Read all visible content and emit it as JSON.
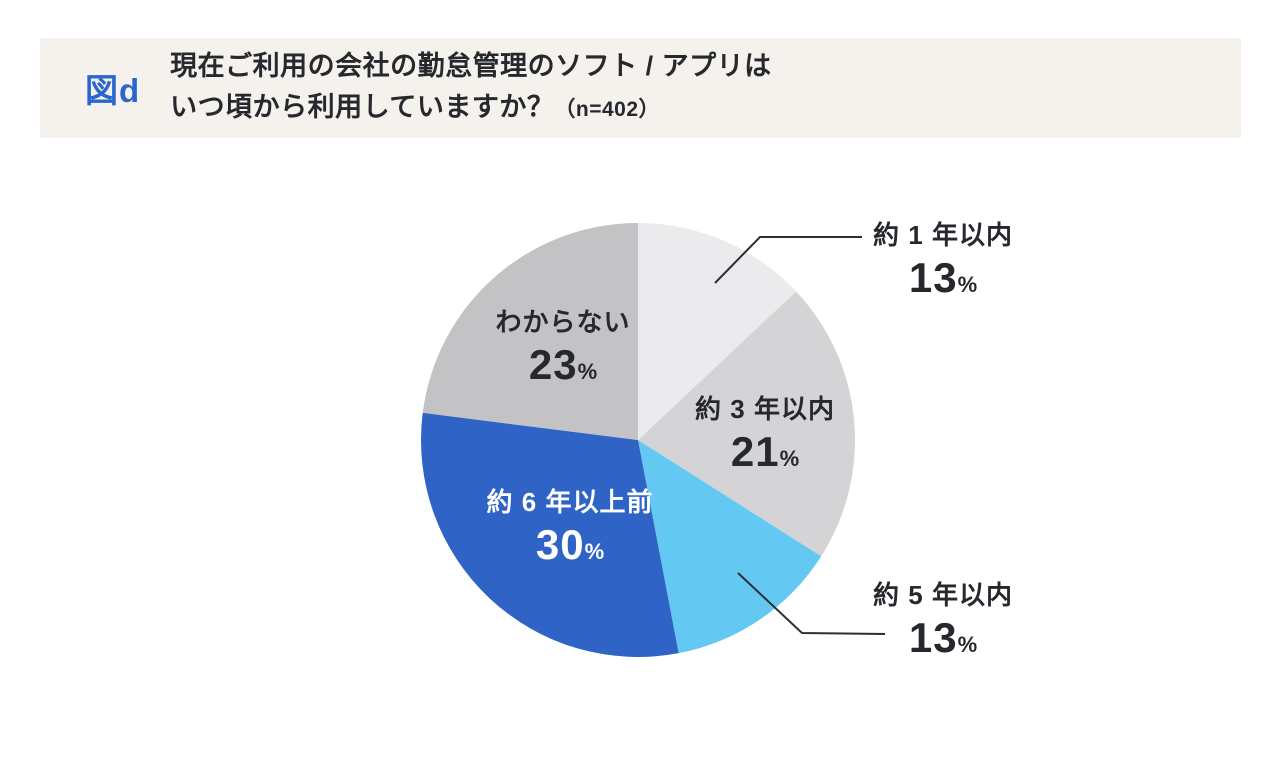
{
  "header": {
    "figure_tag": "図d",
    "title_line1": "現在ご利用の会社の勤怠管理のソフト / アプリは",
    "title_line2": "いつ頃から利用していますか？",
    "title_note": "（n=402）"
  },
  "colors": {
    "header_band_bg": "#f5f1ec",
    "figure_tag_blue": "#2a66cc",
    "text_dark": "#25282c",
    "leader_line": "#2b2e33"
  },
  "chart_data": {
    "type": "pie",
    "title": "現在ご利用の会社の勤怠管理のソフト / アプリはいつ頃から利用していますか？",
    "sample_size_label": "n=402",
    "start_angle_deg": -90,
    "direction": "clockwise",
    "unit": "%",
    "slices": [
      {
        "label": "約 1 年以内",
        "value": 13,
        "unit": "%",
        "color": "#ebebed",
        "label_placement": "outside-top-right",
        "text_color": "#25282c"
      },
      {
        "label": "約 3 年以内",
        "value": 21,
        "unit": "%",
        "color": "#d4d4d6",
        "label_placement": "inside",
        "text_color": "#25282c"
      },
      {
        "label": "約 5 年以内",
        "value": 13,
        "unit": "%",
        "color": "#63c8f2",
        "label_placement": "outside-bottom-right",
        "text_color": "#25282c"
      },
      {
        "label": "約 6 年以上前",
        "value": 30,
        "unit": "%",
        "color": "#2f63c5",
        "label_placement": "inside",
        "text_color": "#ffffff"
      },
      {
        "label": "わからない",
        "value": 23,
        "unit": "%",
        "color": "#c3c3c5",
        "label_placement": "inside",
        "text_color": "#25282c"
      }
    ]
  }
}
